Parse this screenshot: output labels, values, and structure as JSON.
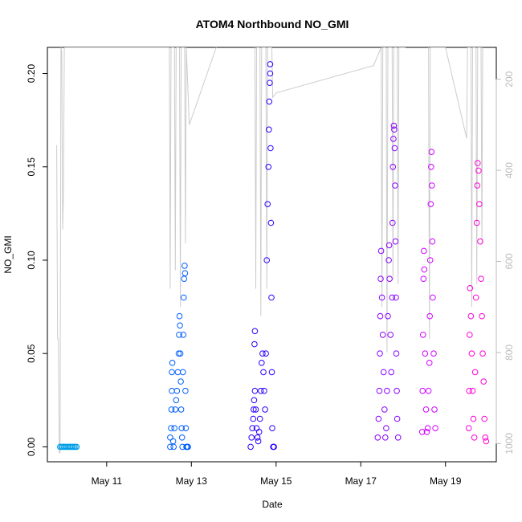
{
  "chart_data": {
    "type": "scatter",
    "title": "ATOM4 Northbound NO_GMI",
    "xlabel": "Date",
    "ylabel": "NO_GMI",
    "x_ticks": [
      "May 11",
      "May 13",
      "May 15",
      "May 17",
      "May 19"
    ],
    "x_tick_days": [
      11,
      13,
      15,
      17,
      19
    ],
    "xlim_days": [
      9.6,
      20.2
    ],
    "ylim": [
      -0.008,
      0.214
    ],
    "y_ticks": [
      0.0,
      0.05,
      0.1,
      0.15,
      0.2
    ],
    "y_tick_labels": [
      "0.00",
      "0.05",
      "0.10",
      "0.15",
      "0.20"
    ],
    "right_axis": {
      "ticks": [
        200,
        400,
        600,
        800,
        1000
      ],
      "tick_labels": [
        "200",
        "400",
        "600",
        "800",
        "1000"
      ],
      "lim_top_to_bottom": [
        130,
        1040
      ],
      "color": "#bbbbbb"
    },
    "grid": false,
    "legend": "none",
    "series": [
      {
        "color": "#009ee8",
        "marker": "open-circle",
        "points": [
          [
            9.9,
            0.0
          ],
          [
            9.93,
            0.0
          ],
          [
            9.96,
            0.0
          ],
          [
            9.99,
            0.0
          ],
          [
            10.02,
            0.0
          ],
          [
            10.05,
            0.0
          ],
          [
            10.08,
            0.0
          ],
          [
            10.11,
            0.0
          ],
          [
            10.14,
            0.0
          ],
          [
            10.17,
            0.0
          ],
          [
            10.2,
            0.0
          ],
          [
            10.23,
            0.0
          ],
          [
            10.26,
            0.0
          ],
          [
            10.29,
            0.0
          ]
        ]
      },
      {
        "color": "#005eff",
        "marker": "open-circle",
        "points": [
          [
            12.5,
            0.0
          ],
          [
            12.5,
            0.005
          ],
          [
            12.52,
            0.01
          ],
          [
            12.53,
            0.02
          ],
          [
            12.54,
            0.03
          ],
          [
            12.54,
            0.04
          ],
          [
            12.55,
            0.045
          ],
          [
            12.57,
            0.003
          ],
          [
            12.58,
            0.0
          ],
          [
            12.6,
            0.01
          ],
          [
            12.62,
            0.02
          ],
          [
            12.64,
            0.025
          ],
          [
            12.66,
            0.03
          ],
          [
            12.68,
            0.04
          ],
          [
            12.7,
            0.05
          ],
          [
            12.71,
            0.06
          ],
          [
            12.72,
            0.07
          ],
          [
            12.73,
            0.065
          ],
          [
            12.74,
            0.05
          ],
          [
            12.75,
            0.035
          ],
          [
            12.76,
            0.02
          ],
          [
            12.77,
            0.01
          ],
          [
            12.78,
            0.005
          ],
          [
            12.79,
            0.0
          ],
          [
            12.8,
            0.04
          ],
          [
            12.81,
            0.06
          ],
          [
            12.82,
            0.08
          ],
          [
            12.83,
            0.09
          ],
          [
            12.84,
            0.097
          ],
          [
            12.85,
            0.093
          ],
          [
            12.86,
            0.03
          ],
          [
            12.87,
            0.01
          ],
          [
            12.88,
            0.0
          ],
          [
            12.9,
            0.0
          ],
          [
            12.92,
            0.0
          ]
        ]
      },
      {
        "color": "#2a00ff",
        "marker": "open-circle",
        "points": [
          [
            14.4,
            0.0
          ],
          [
            14.42,
            0.005
          ],
          [
            14.44,
            0.01
          ],
          [
            14.46,
            0.015
          ],
          [
            14.47,
            0.02
          ],
          [
            14.48,
            0.025
          ],
          [
            14.49,
            0.055
          ],
          [
            14.5,
            0.062
          ],
          [
            14.5,
            0.03
          ],
          [
            14.52,
            0.02
          ],
          [
            14.54,
            0.01
          ],
          [
            14.56,
            0.005
          ],
          [
            14.58,
            0.003
          ],
          [
            14.6,
            0.008
          ],
          [
            14.62,
            0.015
          ],
          [
            14.64,
            0.03
          ],
          [
            14.66,
            0.045
          ],
          [
            14.68,
            0.05
          ],
          [
            14.7,
            0.04
          ],
          [
            14.72,
            0.03
          ],
          [
            14.74,
            0.02
          ],
          [
            14.76,
            0.05
          ],
          [
            14.78,
            0.1
          ],
          [
            14.8,
            0.13
          ],
          [
            14.82,
            0.15
          ],
          [
            14.83,
            0.17
          ],
          [
            14.84,
            0.185
          ],
          [
            14.85,
            0.195
          ],
          [
            14.86,
            0.205
          ],
          [
            14.86,
            0.2
          ],
          [
            14.87,
            0.16
          ],
          [
            14.88,
            0.12
          ],
          [
            14.89,
            0.08
          ],
          [
            14.9,
            0.04
          ],
          [
            14.91,
            0.01
          ],
          [
            14.93,
            0.0
          ],
          [
            14.95,
            0.0
          ]
        ]
      },
      {
        "color": "#8a00ff",
        "marker": "open-circle",
        "points": [
          [
            17.4,
            0.005
          ],
          [
            17.42,
            0.015
          ],
          [
            17.44,
            0.03
          ],
          [
            17.45,
            0.05
          ],
          [
            17.46,
            0.07
          ],
          [
            17.47,
            0.09
          ],
          [
            17.48,
            0.105
          ],
          [
            17.5,
            0.08
          ],
          [
            17.52,
            0.06
          ],
          [
            17.54,
            0.04
          ],
          [
            17.56,
            0.02
          ],
          [
            17.58,
            0.005
          ],
          [
            17.6,
            0.01
          ],
          [
            17.62,
            0.03
          ],
          [
            17.64,
            0.07
          ],
          [
            17.66,
            0.1
          ],
          [
            17.67,
            0.108
          ],
          [
            17.68,
            0.09
          ],
          [
            17.7,
            0.06
          ],
          [
            17.72,
            0.04
          ],
          [
            17.74,
            0.08
          ],
          [
            17.75,
            0.12
          ],
          [
            17.76,
            0.15
          ],
          [
            17.77,
            0.165
          ],
          [
            17.78,
            0.172
          ],
          [
            17.79,
            0.17
          ],
          [
            17.8,
            0.16
          ],
          [
            17.81,
            0.14
          ],
          [
            17.82,
            0.11
          ],
          [
            17.83,
            0.08
          ],
          [
            17.84,
            0.05
          ],
          [
            17.85,
            0.03
          ],
          [
            17.86,
            0.015
          ],
          [
            17.88,
            0.005
          ]
        ]
      },
      {
        "color": "#d000ff",
        "marker": "open-circle",
        "points": [
          [
            18.45,
            0.008
          ],
          [
            18.46,
            0.03
          ],
          [
            18.47,
            0.06
          ],
          [
            18.48,
            0.09
          ],
          [
            18.49,
            0.105
          ],
          [
            18.5,
            0.095
          ],
          [
            18.52,
            0.05
          ],
          [
            18.54,
            0.02
          ],
          [
            18.56,
            0.008
          ],
          [
            18.58,
            0.01
          ],
          [
            18.6,
            0.03
          ],
          [
            18.62,
            0.045
          ],
          [
            18.63,
            0.07
          ],
          [
            18.64,
            0.1
          ],
          [
            18.65,
            0.13
          ],
          [
            18.66,
            0.15
          ],
          [
            18.67,
            0.158
          ],
          [
            18.68,
            0.14
          ],
          [
            18.69,
            0.11
          ],
          [
            18.7,
            0.08
          ],
          [
            18.72,
            0.05
          ],
          [
            18.74,
            0.02
          ],
          [
            18.76,
            0.01
          ]
        ]
      },
      {
        "color": "#ff00d8",
        "marker": "open-circle",
        "points": [
          [
            19.55,
            0.01
          ],
          [
            19.56,
            0.03
          ],
          [
            19.57,
            0.06
          ],
          [
            19.58,
            0.085
          ],
          [
            19.6,
            0.07
          ],
          [
            19.62,
            0.05
          ],
          [
            19.64,
            0.03
          ],
          [
            19.66,
            0.015
          ],
          [
            19.68,
            0.005
          ],
          [
            19.7,
            0.04
          ],
          [
            19.72,
            0.08
          ],
          [
            19.74,
            0.12
          ],
          [
            19.75,
            0.14
          ],
          [
            19.76,
            0.152
          ],
          [
            19.78,
            0.148
          ],
          [
            19.8,
            0.13
          ],
          [
            19.82,
            0.11
          ],
          [
            19.84,
            0.09
          ],
          [
            19.86,
            0.07
          ],
          [
            19.88,
            0.05
          ],
          [
            19.9,
            0.035
          ],
          [
            19.92,
            0.015
          ],
          [
            19.94,
            0.005
          ],
          [
            19.96,
            0.003
          ]
        ]
      }
    ],
    "right_axis_line": {
      "color": "#cccccc",
      "points": [
        [
          9.82,
          345
        ],
        [
          9.84,
          770
        ],
        [
          9.86,
          770
        ],
        [
          9.88,
          1020
        ],
        [
          9.9,
          1020
        ],
        [
          9.92,
          130
        ],
        [
          9.94,
          140
        ],
        [
          9.96,
          530
        ],
        [
          9.98,
          450
        ],
        [
          10.0,
          130
        ],
        [
          10.05,
          130
        ],
        [
          12.48,
          130
        ],
        [
          12.5,
          660
        ],
        [
          12.52,
          130
        ],
        [
          12.6,
          130
        ],
        [
          12.62,
          620
        ],
        [
          12.64,
          130
        ],
        [
          12.72,
          130
        ],
        [
          12.74,
          700
        ],
        [
          12.76,
          130
        ],
        [
          12.84,
          130
        ],
        [
          12.86,
          560
        ],
        [
          12.88,
          130
        ],
        [
          12.95,
          300
        ],
        [
          13.7,
          100
        ],
        [
          14.5,
          130
        ],
        [
          14.52,
          660
        ],
        [
          14.54,
          130
        ],
        [
          14.62,
          130
        ],
        [
          14.64,
          720
        ],
        [
          14.66,
          130
        ],
        [
          14.76,
          130
        ],
        [
          14.78,
          660
        ],
        [
          14.8,
          130
        ],
        [
          14.9,
          130
        ],
        [
          14.92,
          240
        ],
        [
          15.0,
          230
        ],
        [
          17.3,
          170
        ],
        [
          17.48,
          130
        ],
        [
          17.5,
          700
        ],
        [
          17.52,
          130
        ],
        [
          17.6,
          130
        ],
        [
          17.62,
          800
        ],
        [
          17.64,
          130
        ],
        [
          17.74,
          130
        ],
        [
          17.76,
          640
        ],
        [
          17.78,
          130
        ],
        [
          17.86,
          130
        ],
        [
          17.88,
          650
        ],
        [
          17.9,
          130
        ],
        [
          18.05,
          130
        ],
        [
          18.4,
          100
        ],
        [
          18.6,
          130
        ],
        [
          18.62,
          770
        ],
        [
          18.64,
          130
        ],
        [
          19.0,
          130
        ],
        [
          19.5,
          330
        ],
        [
          19.52,
          130
        ],
        [
          19.6,
          130
        ],
        [
          19.62,
          700
        ],
        [
          19.64,
          130
        ],
        [
          19.72,
          130
        ],
        [
          19.74,
          650
        ],
        [
          19.76,
          130
        ],
        [
          19.84,
          130
        ],
        [
          19.86,
          560
        ],
        [
          19.88,
          130
        ]
      ]
    }
  }
}
